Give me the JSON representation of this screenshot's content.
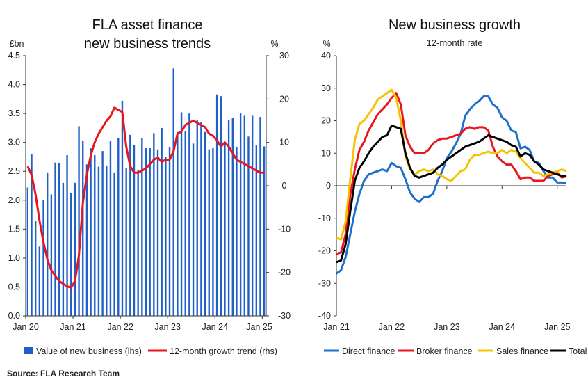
{
  "source": "Source: FLA Research Team",
  "chart_data": [
    {
      "type": "bar+line",
      "title_line1": "FLA asset finance",
      "title_line2": "new business trends",
      "y_left_unit": "£bn",
      "y_right_unit": "%",
      "ylim_left": [
        0,
        4.5
      ],
      "ylim_right": [
        -30,
        30
      ],
      "y_left_ticks": [
        "0.0",
        "0.5",
        "1.0",
        "1.5",
        "2.0",
        "2.5",
        "3.0",
        "3.5",
        "4.0",
        "4.5"
      ],
      "y_right_ticks": [
        "-30",
        "-20",
        "-10",
        "0",
        "10",
        "20",
        "30"
      ],
      "x_tick_labels": [
        "Jan 20",
        "Jan 21",
        "Jan 22",
        "Jan 23",
        "Jan 24",
        "Jan 25"
      ],
      "x_tick_index": [
        0,
        12,
        24,
        36,
        48,
        60
      ],
      "series": [
        {
          "name": "Value of new business (lhs)",
          "kind": "bar",
          "axis": "left",
          "color": "#1f5fc9",
          "values": [
            2.22,
            2.8,
            1.64,
            1.2,
            2.0,
            2.48,
            2.1,
            2.65,
            2.64,
            2.3,
            2.78,
            2.12,
            2.3,
            3.28,
            3.02,
            2.62,
            2.9,
            2.78,
            2.58,
            2.85,
            2.6,
            3.02,
            2.48,
            3.08,
            3.72,
            2.55,
            3.13,
            2.96,
            2.52,
            3.08,
            2.9,
            2.9,
            3.16,
            2.88,
            3.25,
            2.75,
            2.92,
            4.28,
            3.18,
            3.52,
            3.2,
            3.5,
            2.98,
            3.38,
            3.35,
            3.18,
            2.88,
            2.9,
            3.83,
            3.8,
            2.98,
            3.38,
            3.42,
            2.92,
            3.5,
            3.46,
            3.1,
            3.46,
            2.95,
            3.44,
            2.93
          ]
        },
        {
          "name": "12-month growth trend (rhs)",
          "kind": "line",
          "axis": "right",
          "color": "#e8141e",
          "values": [
            4.5,
            2.5,
            -2.0,
            -8.0,
            -13.0,
            -17.0,
            -19.5,
            -20.8,
            -22.0,
            -22.6,
            -23.2,
            -23.5,
            -22.0,
            -16.0,
            -4.0,
            2.5,
            7.0,
            10.0,
            12.0,
            13.5,
            15.0,
            16.0,
            18.0,
            17.5,
            17.0,
            9.0,
            4.5,
            3.0,
            3.0,
            3.5,
            4.0,
            5.0,
            6.0,
            6.5,
            5.5,
            6.0,
            6.0,
            8.0,
            12.0,
            12.5,
            14.0,
            14.5,
            15.0,
            14.5,
            14.0,
            13.5,
            12.0,
            11.5,
            10.5,
            9.0,
            10.0,
            9.0,
            7.5,
            6.0,
            5.5,
            5.0,
            4.5,
            4.0,
            3.5,
            3.0,
            3.0
          ]
        }
      ]
    },
    {
      "type": "line",
      "title": "New business growth",
      "subtitle": "12-month rate",
      "y_unit": "%",
      "ylim": [
        -40,
        40
      ],
      "y_ticks": [
        "-40",
        "-30",
        "-20",
        "-10",
        "0",
        "10",
        "20",
        "30",
        "40"
      ],
      "x_tick_labels": [
        "Jan 21",
        "Jan 22",
        "Jan 23",
        "Jan 24",
        "Jan 25"
      ],
      "x_tick_index": [
        0,
        12,
        24,
        36,
        48
      ],
      "series": [
        {
          "name": "Direct finance",
          "color": "#1f6fcc",
          "values": [
            -27.0,
            -26.0,
            -22.0,
            -15.0,
            -8.0,
            -2.5,
            1.5,
            3.5,
            4.0,
            4.5,
            5.0,
            4.5,
            7.0,
            6.0,
            5.5,
            2.0,
            -2.0,
            -4.0,
            -5.0,
            -3.5,
            -3.5,
            -2.5,
            1.5,
            4.5,
            8.5,
            10.5,
            13.0,
            16.0,
            21.5,
            23.5,
            25.0,
            26.0,
            27.5,
            27.5,
            25.0,
            24.0,
            21.0,
            20.0,
            17.0,
            16.5,
            11.5,
            12.0,
            11.0,
            7.5,
            7.0,
            4.5,
            2.5,
            2.5,
            1.0,
            1.0,
            0.8
          ]
        },
        {
          "name": "Broker finance",
          "color": "#e8141e",
          "values": [
            -21.0,
            -20.5,
            -15.0,
            -3.0,
            5.0,
            11.0,
            13.5,
            17.0,
            19.5,
            22.0,
            23.5,
            25.0,
            27.0,
            28.5,
            25.0,
            15.5,
            12.0,
            10.0,
            10.0,
            10.0,
            11.0,
            13.0,
            14.0,
            14.5,
            14.5,
            15.0,
            15.5,
            16.0,
            17.5,
            18.0,
            17.5,
            18.0,
            18.0,
            17.0,
            12.0,
            9.0,
            7.5,
            6.5,
            6.5,
            4.5,
            2.0,
            2.5,
            2.5,
            1.5,
            1.5,
            1.5,
            3.0,
            3.5,
            4.0,
            2.5,
            3.0
          ]
        },
        {
          "name": "Sales finance",
          "color": "#f5c400",
          "values": [
            -16.0,
            -16.5,
            -11.0,
            2.0,
            14.0,
            19.0,
            20.0,
            22.0,
            24.0,
            26.5,
            27.5,
            28.5,
            29.5,
            27.0,
            20.0,
            9.0,
            5.0,
            3.5,
            4.5,
            5.0,
            4.5,
            5.0,
            3.5,
            3.0,
            2.0,
            1.5,
            3.0,
            4.5,
            5.0,
            8.0,
            9.5,
            9.5,
            10.0,
            10.5,
            10.0,
            10.0,
            11.0,
            10.0,
            11.0,
            10.5,
            8.5,
            7.0,
            5.5,
            4.0,
            4.0,
            3.0,
            3.5,
            4.0,
            4.5,
            5.0,
            4.5
          ]
        },
        {
          "name": "Total",
          "color": "#000000",
          "values": [
            -23.5,
            -23.0,
            -18.0,
            -8.0,
            1.5,
            5.5,
            7.5,
            10.0,
            12.0,
            13.5,
            15.0,
            15.5,
            18.5,
            18.0,
            17.5,
            10.0,
            5.5,
            3.0,
            2.5,
            3.0,
            3.5,
            4.0,
            5.5,
            6.5,
            8.0,
            9.0,
            10.0,
            11.0,
            12.0,
            12.5,
            13.0,
            13.5,
            14.5,
            15.5,
            15.0,
            14.5,
            14.0,
            13.5,
            12.5,
            12.0,
            9.0,
            10.0,
            9.5,
            7.5,
            6.5,
            5.0,
            4.5,
            4.0,
            3.5,
            3.0,
            2.8
          ]
        }
      ]
    }
  ]
}
